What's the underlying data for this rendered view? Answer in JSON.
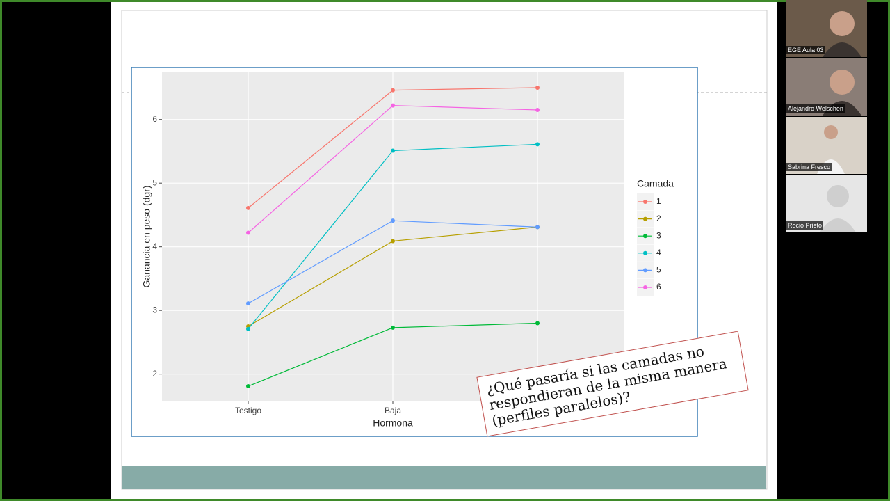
{
  "chart_data": {
    "type": "line",
    "x_label": "Hormona",
    "y_label": "Ganancia en peso (dgr)",
    "legend_title": "Camada",
    "categories": [
      "Testigo",
      "Baja",
      null
    ],
    "series": [
      {
        "name": "1",
        "color": "#F8766D",
        "values": [
          4.61,
          6.46,
          6.5
        ]
      },
      {
        "name": "2",
        "color": "#B79F00",
        "values": [
          2.75,
          4.09,
          4.31
        ]
      },
      {
        "name": "3",
        "color": "#00BA38",
        "values": [
          1.81,
          2.73,
          2.8
        ]
      },
      {
        "name": "4",
        "color": "#00BFC4",
        "values": [
          2.71,
          5.51,
          5.61
        ]
      },
      {
        "name": "5",
        "color": "#619CFF",
        "values": [
          3.11,
          4.41,
          4.31
        ]
      },
      {
        "name": "6",
        "color": "#F564E3",
        "values": [
          4.22,
          6.22,
          6.15
        ]
      }
    ],
    "ylim": [
      1.57,
      6.74
    ],
    "yticks": [
      2,
      3,
      4,
      5,
      6
    ],
    "grid": true,
    "legend": "right"
  },
  "annotation": "¿Qué pasaría si las camadas no respondieran de la misma manera (perfiles paralelos)?",
  "participants": [
    "EGE Aula 03",
    "Alejandro Welschen",
    "Sabrina Fresco",
    "Rocio Prieto"
  ]
}
